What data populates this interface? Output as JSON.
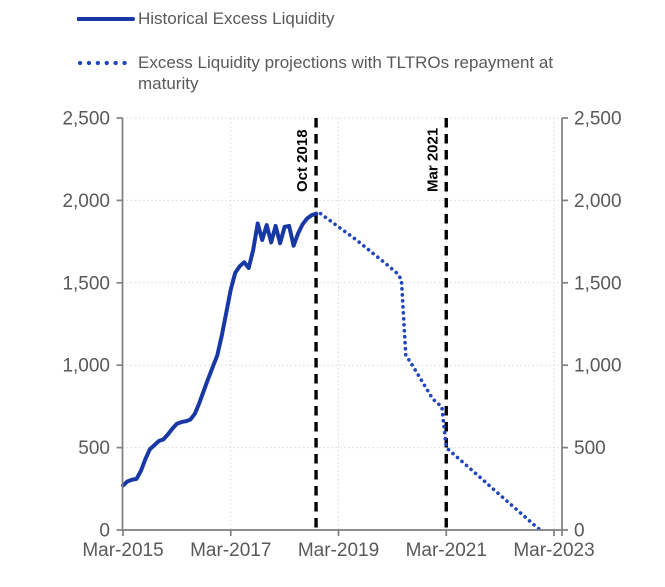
{
  "colors": {
    "historical_line": "#1839A5",
    "projection_dots": "#2145BE",
    "axis": "#7f7f7f",
    "gridline": "#d9d9d9",
    "tick_label": "#595959",
    "annotation": "#000000",
    "background": "#ffffff"
  },
  "legend": {
    "items": [
      {
        "label": "Historical Excess Liquidity",
        "style": "solid"
      },
      {
        "label": "Excess Liquidity projections with TLTROs repayment at maturity",
        "style": "dotted"
      }
    ]
  },
  "chart_data": {
    "type": "line",
    "title": "",
    "xlabel": "",
    "ylabel": "",
    "grid": true,
    "legend_position": "top-left",
    "x_axis": {
      "start": "Mar-2015",
      "end": "Mar-2023",
      "months_total": 96,
      "tick_labels": [
        "Mar-2015",
        "Mar-2017",
        "Mar-2019",
        "Mar-2021",
        "Mar-2023"
      ]
    },
    "y_axis": {
      "min": 0,
      "max": 2500,
      "tick_step": 500,
      "tick_labels": [
        "0",
        "500",
        "1,000",
        "1,500",
        "2,000",
        "2,500"
      ],
      "sides": [
        "left",
        "right"
      ]
    },
    "annotations": [
      {
        "label": "Oct 2018",
        "month_index": 43
      },
      {
        "label": "Mar 2021",
        "month_index": 72
      }
    ],
    "series": [
      {
        "name": "Historical Excess Liquidity",
        "style": "solid",
        "color": "#1839A5",
        "start_month": "Mar-2015",
        "start_month_index": 0,
        "values": [
          270,
          295,
          305,
          310,
          360,
          430,
          490,
          515,
          540,
          550,
          580,
          615,
          645,
          655,
          660,
          670,
          705,
          770,
          845,
          920,
          990,
          1060,
          1180,
          1320,
          1460,
          1560,
          1600,
          1625,
          1590,
          1700,
          1860,
          1760,
          1850,
          1745,
          1845,
          1740,
          1840,
          1845,
          1725,
          1800,
          1855,
          1890,
          1910,
          1920
        ]
      },
      {
        "name": "Excess Liquidity projections with TLTROs repayment at maturity",
        "style": "dotted",
        "color": "#2145BE",
        "start_month": "Nov-2018",
        "start_month_index": 44,
        "values": [
          1920,
          1900,
          1880,
          1860,
          1840,
          1820,
          1800,
          1780,
          1760,
          1738,
          1716,
          1694,
          1672,
          1650,
          1628,
          1605,
          1582,
          1558,
          1520,
          1060,
          1020,
          975,
          930,
          885,
          840,
          795,
          770,
          750,
          500,
          476,
          452,
          428,
          404,
          380,
          356,
          332,
          308,
          284,
          260,
          236,
          212,
          188,
          164,
          140,
          116,
          92,
          68,
          44,
          20,
          0
        ]
      }
    ]
  }
}
